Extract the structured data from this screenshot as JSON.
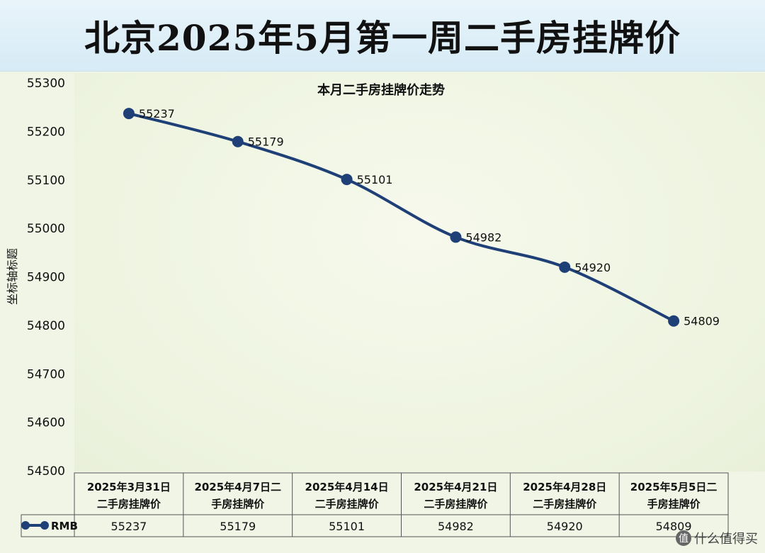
{
  "header": {
    "title": "北京2025年5月第一周二手房挂牌价"
  },
  "chart_data": {
    "type": "line",
    "title": "本月二手房挂牌价走势",
    "xlabel": "",
    "ylabel": "坐标轴标题",
    "ylim": [
      54500,
      55300
    ],
    "yticks": [
      55300,
      55200,
      55100,
      55000,
      54900,
      54800,
      54700,
      54600,
      54500
    ],
    "grid": false,
    "legend": "bottom-left (data table)",
    "categories": [
      [
        "2025年3月31日",
        "二手房挂牌价"
      ],
      [
        "2025年4月7日二",
        "手房挂牌价"
      ],
      [
        "2025年4月14日",
        "二手房挂牌价"
      ],
      [
        "2025年4月21日",
        "二手房挂牌价"
      ],
      [
        "2025年4月28日",
        "二手房挂牌价"
      ],
      [
        "2025年5月5日二",
        "手房挂牌价"
      ]
    ],
    "series": [
      {
        "name": "RMB",
        "color": "#1f3f77",
        "values": [
          55237,
          55179,
          55101,
          54982,
          54920,
          54809
        ]
      }
    ]
  },
  "watermark": {
    "logo": "值",
    "text": "什么值得买"
  }
}
